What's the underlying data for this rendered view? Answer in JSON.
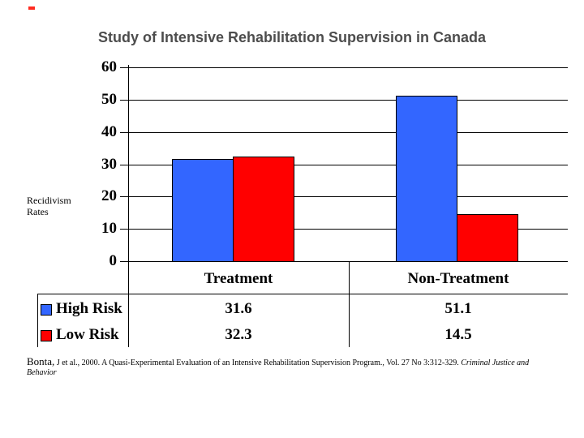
{
  "title": "Study of Intensive Rehabilitation Supervision in Canada",
  "title_color": "#4d4d4d",
  "chart_data": {
    "type": "bar",
    "title": "Study of Intensive Rehabilitation Supervision in Canada",
    "categories": [
      "Treatment",
      "Non-Treatment"
    ],
    "series": [
      {
        "name": "High Risk",
        "color": "#3366FF",
        "values": [
          31.6,
          51.1
        ]
      },
      {
        "name": "Low Risk",
        "color": "#FF0000",
        "values": [
          32.3,
          14.5
        ]
      }
    ],
    "ylabel": "Recidivism Rates",
    "xlabel": "",
    "ylim": [
      0,
      60
    ],
    "ytick_step": 10,
    "yticks": [
      0,
      10,
      20,
      30,
      40,
      50,
      60
    ],
    "grid": true,
    "data_table_shown": true,
    "legend_position": "data-table-left"
  },
  "footnote": {
    "author": "Bonta,",
    "body": " J et al., 2000.  A Quasi-Experimental Evaluation of an Intensive Rehabilitation Supervision Program., Vol. 27 No 3:312-329. ",
    "journal": "Criminal Justice and Behavior"
  }
}
